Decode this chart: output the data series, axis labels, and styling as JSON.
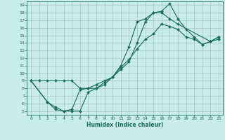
{
  "xlabel": "Humidex (Indice chaleur)",
  "xlim": [
    -0.5,
    23.5
  ],
  "ylim": [
    4.5,
    19.5
  ],
  "xticks": [
    0,
    1,
    2,
    3,
    4,
    5,
    6,
    7,
    8,
    9,
    10,
    11,
    12,
    13,
    14,
    15,
    16,
    17,
    18,
    19,
    20,
    21,
    22,
    23
  ],
  "yticks": [
    5,
    6,
    7,
    8,
    9,
    10,
    11,
    12,
    13,
    14,
    15,
    16,
    17,
    18,
    19
  ],
  "bg_color": "#c8ece8",
  "line_color": "#1a6b5e",
  "line1_x": [
    0,
    1,
    2,
    3,
    4,
    5,
    6,
    7,
    8,
    9,
    10,
    11,
    12,
    13,
    14,
    15,
    16,
    17,
    18,
    19,
    20,
    21,
    22,
    23
  ],
  "line1_y": [
    9.0,
    9.0,
    9.0,
    9.0,
    9.0,
    9.0,
    8.0,
    8.0,
    8.5,
    9.0,
    9.5,
    11.0,
    13.5,
    16.8,
    17.2,
    18.0,
    18.2,
    19.2,
    17.2,
    15.8,
    14.8,
    13.8,
    14.2,
    14.5
  ],
  "line2_x": [
    0,
    2,
    3,
    4,
    5,
    6,
    7,
    8,
    9,
    10,
    11,
    12,
    13,
    14,
    15,
    16,
    17,
    18,
    22,
    23
  ],
  "line2_y": [
    9.0,
    6.2,
    5.2,
    5.0,
    5.0,
    5.0,
    7.5,
    8.0,
    8.5,
    9.5,
    10.5,
    11.5,
    14.0,
    16.8,
    18.0,
    18.0,
    17.2,
    16.5,
    14.2,
    14.8
  ],
  "line3_x": [
    0,
    2,
    3,
    4,
    5,
    6,
    7,
    8,
    9,
    10,
    11,
    12,
    13,
    14,
    15,
    16,
    17,
    18,
    19,
    20,
    21,
    22,
    23
  ],
  "line3_y": [
    9.0,
    6.2,
    5.5,
    5.0,
    5.2,
    7.8,
    8.0,
    8.0,
    8.8,
    9.5,
    10.8,
    11.8,
    13.2,
    14.5,
    15.2,
    16.5,
    16.2,
    15.8,
    14.8,
    14.5,
    13.8,
    14.2,
    14.8
  ],
  "grid_color": "#9fbfbb"
}
